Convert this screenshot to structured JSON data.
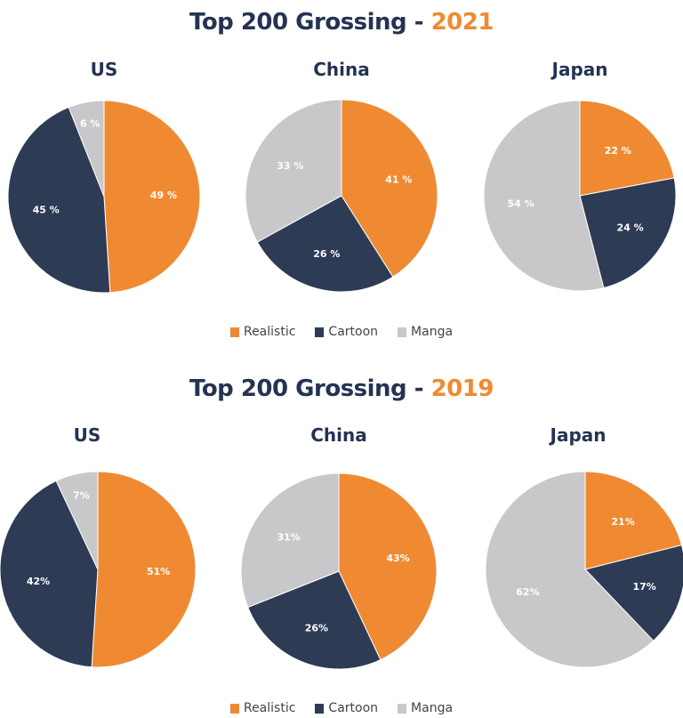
{
  "chart_data": [
    {
      "type": "pie",
      "title": "Top 200 Grossing - 2021",
      "title_text": "Top 200 Grossing - ",
      "title_year": "2021",
      "categories": [
        "Realistic",
        "Cartoon",
        "Manga"
      ],
      "pies": [
        {
          "name": "US",
          "values": [
            49,
            45,
            6
          ],
          "labels": [
            "49 %",
            "45 %",
            "6 %"
          ]
        },
        {
          "name": "China",
          "values": [
            41,
            26,
            33
          ],
          "labels": [
            "41 %",
            "26 %",
            "33 %"
          ]
        },
        {
          "name": "Japan",
          "values": [
            22,
            24,
            54
          ],
          "labels": [
            "22 %",
            "24 %",
            "54 %"
          ]
        }
      ],
      "legend": "bottom"
    },
    {
      "type": "pie",
      "title": "Top 200 Grossing - 2019",
      "title_text": "Top 200 Grossing - ",
      "title_year": "2019",
      "categories": [
        "Realistic",
        "Cartoon",
        "Manga"
      ],
      "pies": [
        {
          "name": "US",
          "values": [
            51,
            42,
            7
          ],
          "labels": [
            "51%",
            "42%",
            "7%"
          ]
        },
        {
          "name": "China",
          "values": [
            43,
            26,
            31
          ],
          "labels": [
            "43%",
            "26%",
            "31%"
          ]
        },
        {
          "name": "Japan",
          "values": [
            21,
            17,
            62
          ],
          "labels": [
            "21%",
            "17%",
            "62%"
          ]
        }
      ],
      "legend": "bottom"
    }
  ],
  "colors": {
    "Realistic": "#f08a32",
    "Cartoon": "#2d3b55",
    "Manga": "#c8c8ca",
    "title": "#253352",
    "year": "#f08a32"
  }
}
